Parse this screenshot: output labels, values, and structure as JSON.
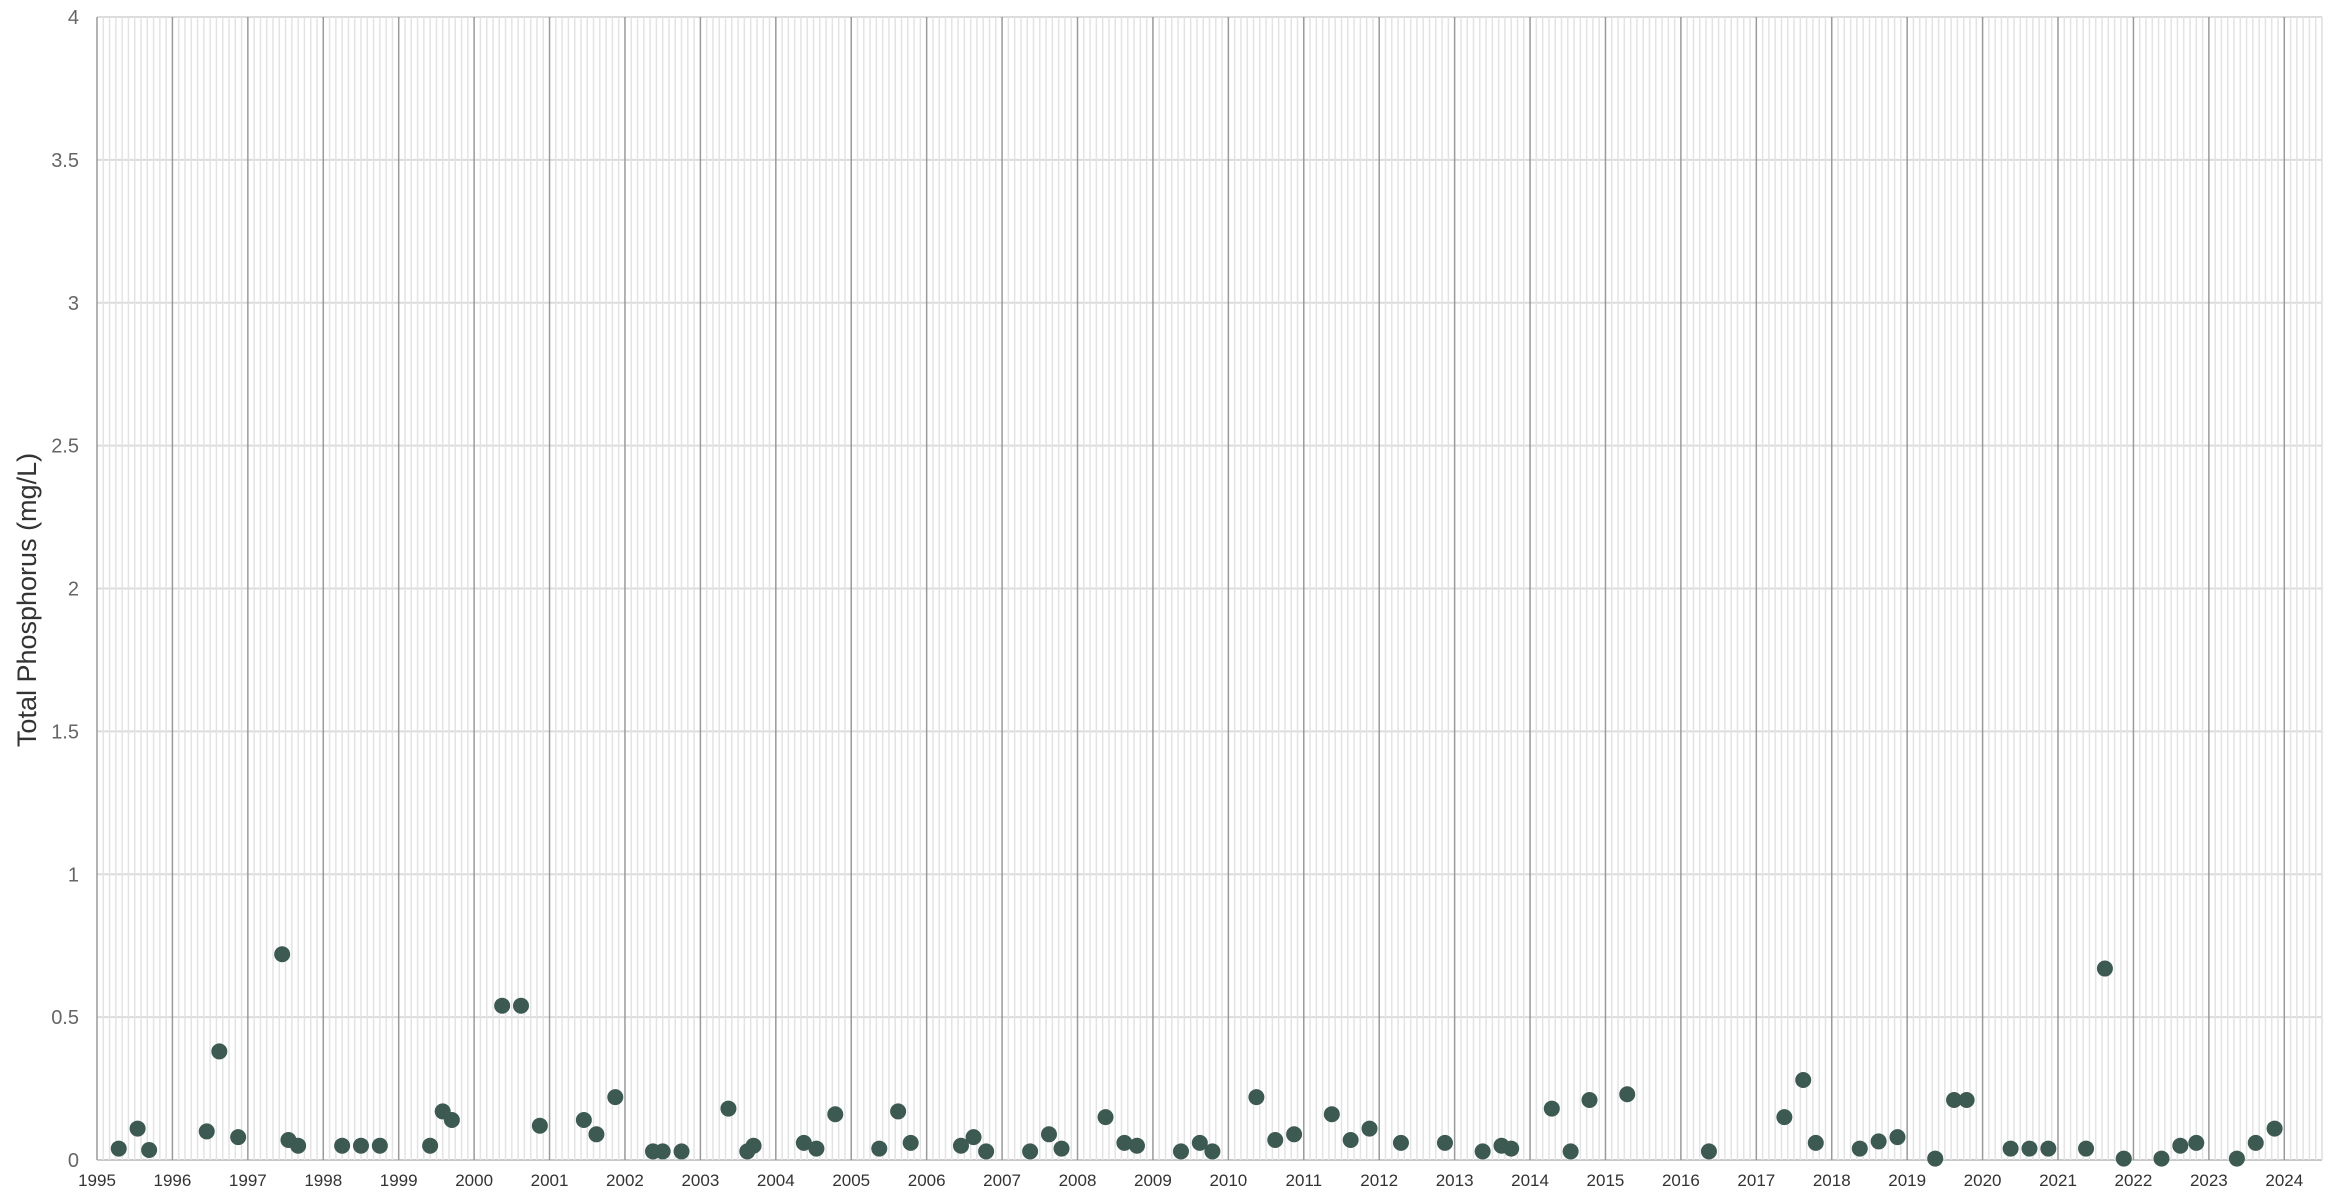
{
  "chart_data": {
    "type": "scatter",
    "title": "",
    "xlabel": "",
    "ylabel": "Total Phosphorus (mg/L)",
    "ylim": [
      0,
      4
    ],
    "yticks": [
      0,
      0.5,
      1,
      1.5,
      2,
      2.5,
      3,
      3.5,
      4
    ],
    "ytick_labels": [
      "0",
      "0.5",
      "1",
      "1.5",
      "2",
      "2.5",
      "3",
      "3.5",
      "4"
    ],
    "xlim": [
      "1995-01-01",
      "2024-07-01"
    ],
    "xticks": [
      "1995",
      "1996",
      "1997",
      "1998",
      "1999",
      "2000",
      "2001",
      "2002",
      "2003",
      "2004",
      "2005",
      "2006",
      "2007",
      "2008",
      "2009",
      "2010",
      "2011",
      "2012",
      "2013",
      "2014",
      "2015",
      "2016",
      "2017",
      "2018",
      "2019",
      "2020",
      "2021",
      "2022",
      "2023",
      "2024"
    ],
    "grid": "horizontal at y ticks, vertical monthly with darker year lines",
    "legend": "none",
    "point_color": "#3d5a52",
    "x": [
      "1995-04-15",
      "1995-07-15",
      "1995-09-10",
      "1996-06-15",
      "1996-08-15",
      "1996-11-15",
      "1997-06-15",
      "1997-07-15",
      "1997-09-01",
      "1998-04-01",
      "1998-07-01",
      "1998-10-01",
      "1999-06-01",
      "1999-08-01",
      "1999-09-15",
      "2000-05-15",
      "2000-08-15",
      "2000-11-15",
      "2001-06-15",
      "2001-08-15",
      "2001-11-15",
      "2002-05-15",
      "2002-07-01",
      "2002-10-01",
      "2003-05-15",
      "2003-08-15",
      "2003-09-15",
      "2004-05-15",
      "2004-07-15",
      "2004-10-15",
      "2005-05-15",
      "2005-08-15",
      "2005-10-15",
      "2006-06-15",
      "2006-08-15",
      "2006-10-15",
      "2007-05-15",
      "2007-08-15",
      "2007-10-15",
      "2008-05-15",
      "2008-08-15",
      "2008-10-15",
      "2009-05-15",
      "2009-08-15",
      "2009-10-15",
      "2010-05-15",
      "2010-08-15",
      "2010-11-15",
      "2011-05-15",
      "2011-08-15",
      "2011-11-15",
      "2012-04-15",
      "2012-11-15",
      "2013-05-15",
      "2013-08-15",
      "2013-10-01",
      "2014-04-15",
      "2014-07-15",
      "2014-10-15",
      "2015-04-15",
      "2016-05-15",
      "2017-05-15",
      "2017-08-15",
      "2017-10-15",
      "2018-05-15",
      "2018-08-15",
      "2018-11-15",
      "2019-05-15",
      "2019-08-15",
      "2019-10-15",
      "2020-05-15",
      "2020-08-15",
      "2020-11-15",
      "2021-05-15",
      "2021-08-15",
      "2021-11-15",
      "2022-05-15",
      "2022-08-15",
      "2022-11-01",
      "2023-05-15",
      "2023-08-15",
      "2023-11-15"
    ],
    "y": [
      0.04,
      0.11,
      0.035,
      0.1,
      0.38,
      0.08,
      0.72,
      0.07,
      0.05,
      0.05,
      0.05,
      0.05,
      0.05,
      0.17,
      0.14,
      0.54,
      0.54,
      0.12,
      0.14,
      0.09,
      0.22,
      0.03,
      0.03,
      0.03,
      0.18,
      0.03,
      0.05,
      0.06,
      0.04,
      0.16,
      0.04,
      0.17,
      0.06,
      0.05,
      0.08,
      0.03,
      0.03,
      0.09,
      0.04,
      0.15,
      0.06,
      0.05,
      0.03,
      0.06,
      0.03,
      0.22,
      0.07,
      0.09,
      0.16,
      0.07,
      0.11,
      0.06,
      0.06,
      0.03,
      0.05,
      0.04,
      0.18,
      0.03,
      0.21,
      0.23,
      0.03,
      0.15,
      0.28,
      0.06,
      0.04,
      0.065,
      0.08,
      0.005,
      0.21,
      0.21,
      0.04,
      0.04,
      0.04,
      0.04,
      0.67,
      0.005,
      0.005,
      0.05,
      0.06,
      0.005,
      0.06,
      0.11
    ]
  }
}
